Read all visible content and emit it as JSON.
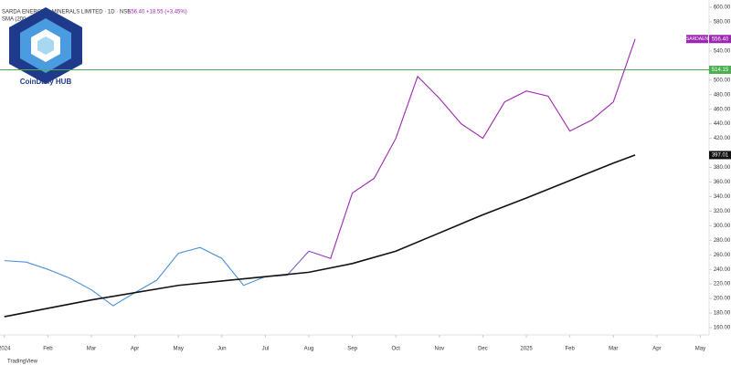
{
  "chart_data": {
    "type": "line",
    "header": {
      "symbol": "SARDA ENERGY & MINERALS LIMITED · 1D · NSE",
      "quote": "556.40 +18.55 (+3.45%)",
      "indicator": "SMA (200, close)"
    },
    "logo": {
      "name": "CoinDaily HUB",
      "footer": "TradingView"
    },
    "x": [
      0,
      0.5,
      1,
      1.5,
      2,
      2.5,
      3,
      3.5,
      4,
      4.5,
      5,
      5.5,
      6,
      6.5,
      7,
      7.5,
      8,
      8.5,
      9,
      9.5,
      10,
      10.5,
      11,
      11.5,
      12,
      12.5,
      13,
      13.5,
      14,
      14.5
    ],
    "series": [
      {
        "name": "SARDAEN",
        "colors": [
          "#4a90d9",
          "#9c27b0"
        ],
        "values": [
          252,
          250,
          240,
          228,
          212,
          190,
          208,
          225,
          262,
          270,
          255,
          218,
          230,
          232,
          265,
          255,
          345,
          365,
          420,
          505,
          475,
          440,
          420,
          470,
          485,
          478,
          430,
          445,
          470,
          556.4
        ],
        "last_label": "556.40"
      },
      {
        "name": "SMA",
        "color": "#111111",
        "x": [
          0,
          2,
          4,
          6,
          7,
          8,
          9,
          10,
          11,
          12,
          13,
          14,
          14.5
        ],
        "values": [
          175,
          198,
          218,
          230,
          236,
          248,
          265,
          290,
          315,
          338,
          362,
          386,
          397.01
        ],
        "last_label": "397.01"
      }
    ],
    "hline": {
      "value": 514.15,
      "label": "514.15",
      "color": "#4caf50"
    },
    "xlim": [
      -0.1,
      16.2
    ],
    "xticks": [
      {
        "value": 0,
        "label": "2024"
      },
      {
        "value": 1,
        "label": "Feb"
      },
      {
        "value": 2,
        "label": "Mar"
      },
      {
        "value": 3,
        "label": "Apr"
      },
      {
        "value": 4,
        "label": "May"
      },
      {
        "value": 5,
        "label": "Jun"
      },
      {
        "value": 6,
        "label": "Jul"
      },
      {
        "value": 7,
        "label": "Aug"
      },
      {
        "value": 8,
        "label": "Sep"
      },
      {
        "value": 9,
        "label": "Oct"
      },
      {
        "value": 10,
        "label": "Nov"
      },
      {
        "value": 11,
        "label": "Dec"
      },
      {
        "value": 12,
        "label": "2025"
      },
      {
        "value": 13,
        "label": "Feb"
      },
      {
        "value": 14,
        "label": "Mar"
      },
      {
        "value": 15,
        "label": "Apr"
      },
      {
        "value": 16,
        "label": "May"
      }
    ],
    "ylim": [
      150,
      610
    ],
    "yticks": [
      {
        "value": 160,
        "label": "160.00"
      },
      {
        "value": 180,
        "label": "180.00"
      },
      {
        "value": 200,
        "label": "200.00"
      },
      {
        "value": 220,
        "label": "220.00"
      },
      {
        "value": 240,
        "label": "240.00"
      },
      {
        "value": 260,
        "label": "260.00"
      },
      {
        "value": 280,
        "label": "280.00"
      },
      {
        "value": 300,
        "label": "300.00"
      },
      {
        "value": 320,
        "label": "320.00"
      },
      {
        "value": 340,
        "label": "340.00"
      },
      {
        "value": 360,
        "label": "360.00"
      },
      {
        "value": 380,
        "label": "380.00"
      },
      {
        "value": 420,
        "label": "420.00"
      },
      {
        "value": 440,
        "label": "440.00"
      },
      {
        "value": 460,
        "label": "460.00"
      },
      {
        "value": 480,
        "label": "480.00"
      },
      {
        "value": 500,
        "label": "500.00"
      },
      {
        "value": 540,
        "label": "540.00"
      },
      {
        "value": 580,
        "label": "580.00"
      },
      {
        "value": 600,
        "label": "600.00"
      }
    ]
  }
}
